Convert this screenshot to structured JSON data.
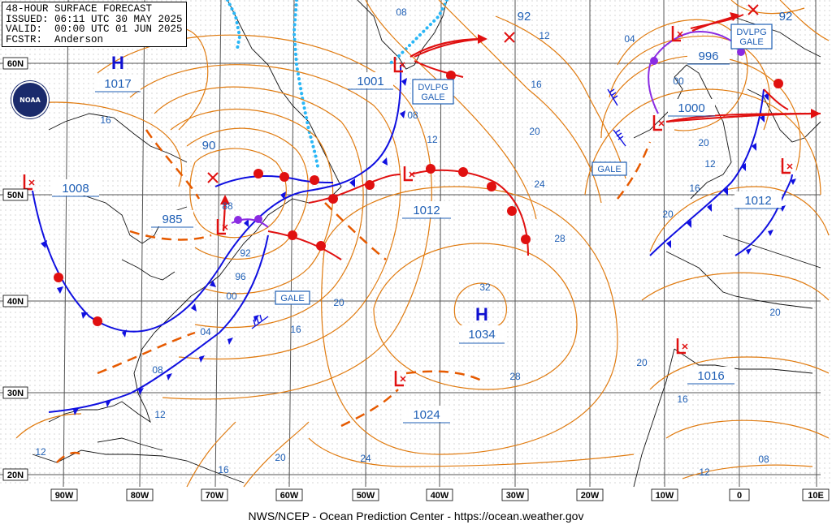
{
  "header": {
    "title": "48-HOUR SURFACE FORECAST",
    "issued": "ISSUED: 06:11 UTC 30 MAY 2025",
    "valid": "VALID:  00:00 UTC 01 JUN 2025",
    "forecaster": "FCSTR:  Anderson"
  },
  "footer": "NWS/NCEP - Ocean Prediction Center - https://ocean.weather.gov",
  "logo_text": "NOAA",
  "colors": {
    "isobar": "#e07b10",
    "cold_front": "#1010e0",
    "warm_front": "#e01010",
    "occluded": "#8a2be2",
    "ice_edge": "#29b6f6",
    "coast": "#000000",
    "label_text": "#1f5fb5",
    "high_low_text": "#1010d0"
  },
  "lat_labels": [
    "60N",
    "50N",
    "40N",
    "30N",
    "20N"
  ],
  "lon_labels": [
    "90W",
    "80W",
    "70W",
    "60W",
    "50W",
    "40W",
    "30W",
    "20W",
    "10W",
    "0",
    "10E"
  ],
  "highs": [
    {
      "id": "high-nw",
      "letter": "H",
      "pressure": "1017"
    },
    {
      "id": "high-central",
      "letter": "H",
      "pressure": "1034"
    }
  ],
  "lows": [
    {
      "id": "low-1008",
      "pressure": "1008"
    },
    {
      "id": "low-985",
      "pressure": "985"
    },
    {
      "id": "low-1001",
      "pressure": "1001"
    },
    {
      "id": "low-1012",
      "pressure": "1012"
    },
    {
      "id": "low-1024",
      "pressure": "1024"
    },
    {
      "id": "low-996",
      "pressure": "996"
    },
    {
      "id": "low-1000",
      "pressure": "1000"
    },
    {
      "id": "low-1012e",
      "pressure": "1012"
    },
    {
      "id": "low-1016",
      "pressure": "1016"
    }
  ],
  "warnings": [
    "DVLPG GALE",
    "DVLPG GALE",
    "GALE",
    "GALE"
  ],
  "isobar_labels": [
    "08",
    "92",
    "12",
    "04",
    "92",
    "16",
    "16",
    "00",
    "20",
    "12",
    "08",
    "24",
    "90",
    "88",
    "92",
    "96",
    "00",
    "04",
    "08",
    "12",
    "16",
    "20",
    "28",
    "32",
    "20",
    "12",
    "16",
    "20",
    "28",
    "20",
    "16",
    "20",
    "24",
    "16",
    "12",
    "08",
    "12",
    "20"
  ]
}
